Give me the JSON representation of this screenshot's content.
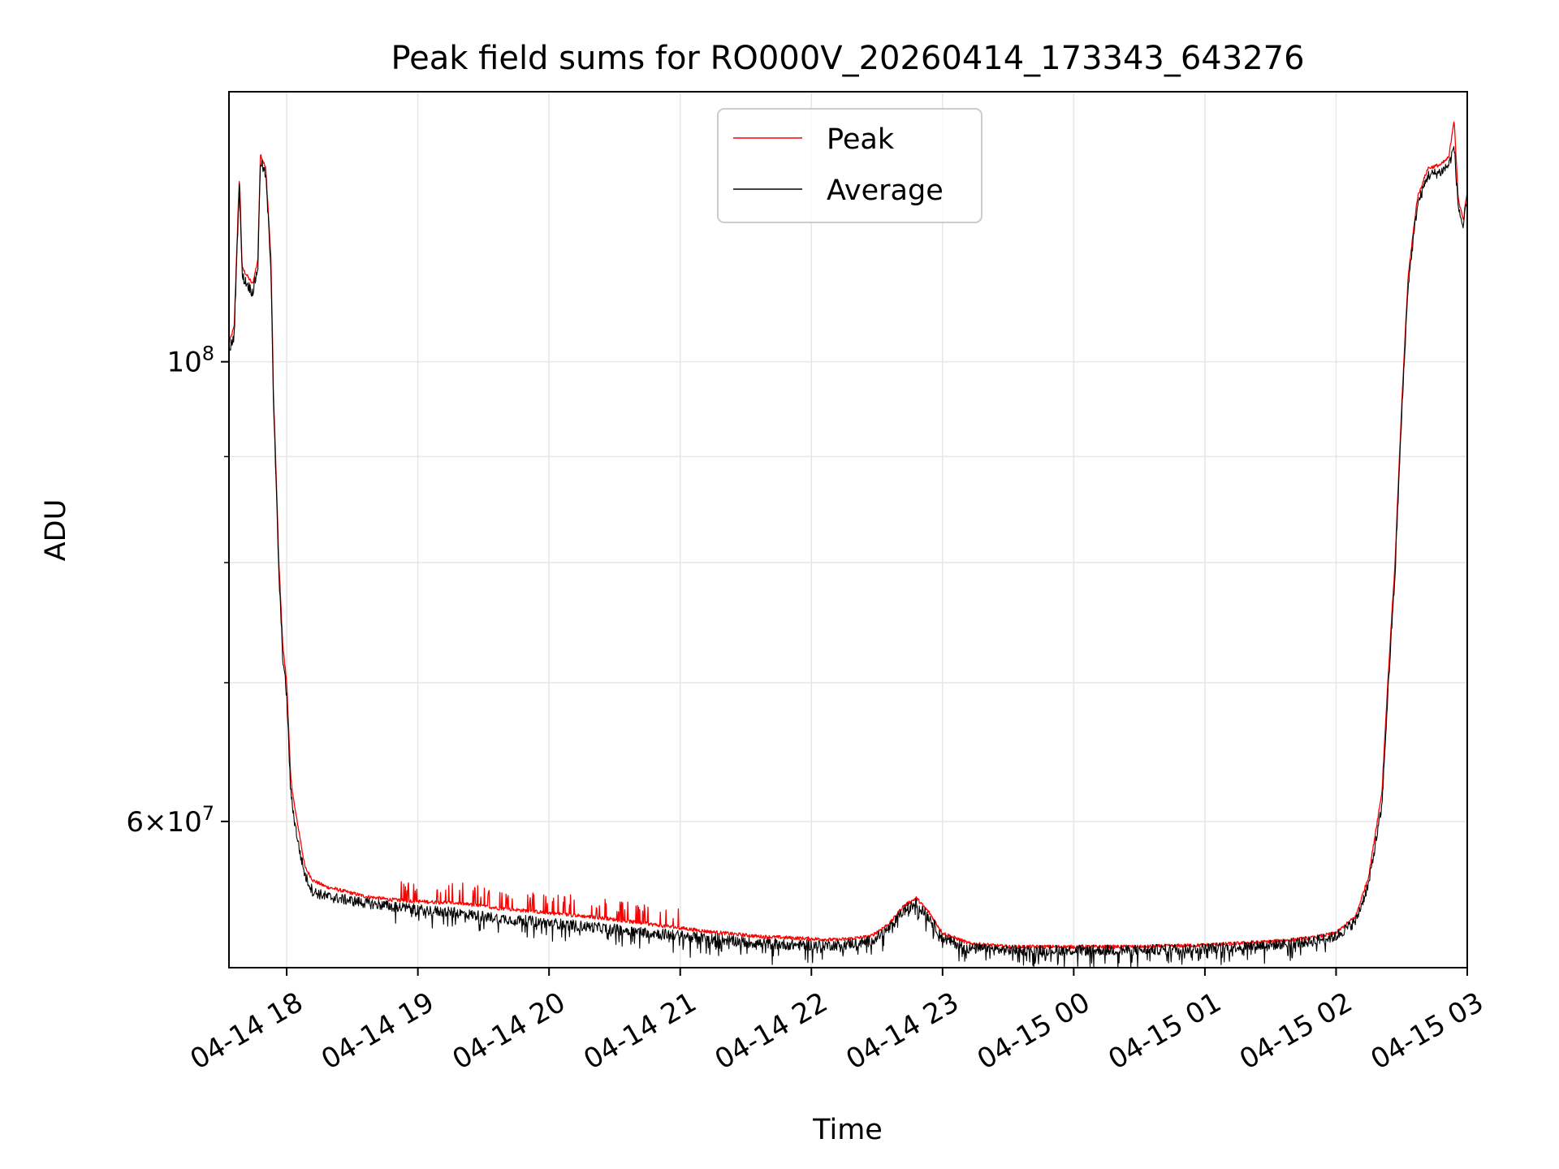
{
  "chart_data": {
    "type": "line",
    "title": "Peak field sums for RO000V_20260414_173343_643276",
    "xlabel": "Time",
    "ylabel": "ADU",
    "yscale": "log",
    "x_unit": "hours since 04-14 00:00",
    "xlim": [
      17.56,
      27.0
    ],
    "ylim": [
      51000000,
      135000000
    ],
    "x_ticks": [
      {
        "value": 18,
        "label": "04-14 18"
      },
      {
        "value": 19,
        "label": "04-14 19"
      },
      {
        "value": 20,
        "label": "04-14 20"
      },
      {
        "value": 21,
        "label": "04-14 21"
      },
      {
        "value": 22,
        "label": "04-14 22"
      },
      {
        "value": 23,
        "label": "04-14 23"
      },
      {
        "value": 24,
        "label": "04-15 00"
      },
      {
        "value": 25,
        "label": "04-15 01"
      },
      {
        "value": 26,
        "label": "04-15 02"
      },
      {
        "value": 27,
        "label": "04-15 03"
      }
    ],
    "y_major_ticks": [
      {
        "value": 60000000,
        "base": "6×10",
        "exp": "7"
      },
      {
        "value": 100000000,
        "base": "10",
        "exp": "8"
      }
    ],
    "y_minor_ticks": [
      70000000,
      80000000,
      90000000
    ],
    "grid": true,
    "legend_position": "top-center",
    "series": [
      {
        "name": "Peak",
        "color": "#ff0000",
        "x": [
          17.56,
          17.6,
          17.64,
          17.66,
          17.7,
          17.74,
          17.78,
          17.8,
          17.82,
          17.84,
          17.88,
          17.9,
          17.94,
          17.97,
          18.0,
          18.03,
          18.06,
          18.1,
          18.14,
          18.2,
          18.3,
          18.45,
          18.6,
          18.8,
          19.0,
          19.3,
          19.6,
          20.0,
          20.4,
          20.8,
          21.2,
          21.6,
          21.9,
          22.2,
          22.45,
          22.6,
          22.7,
          22.8,
          22.9,
          23.0,
          23.2,
          23.5,
          24.0,
          24.5,
          25.0,
          25.5,
          25.8,
          26.0,
          26.15,
          26.25,
          26.35,
          26.45,
          26.55,
          26.62,
          26.7,
          26.8,
          26.86,
          26.9,
          26.93,
          26.97,
          27.0
        ],
        "y": [
          102000000,
          104000000,
          123000000,
          111000000,
          110000000,
          109000000,
          112000000,
          126000000,
          125000000,
          124000000,
          112000000,
          96000000,
          80000000,
          73000000,
          70000000,
          63000000,
          61000000,
          59000000,
          57000000,
          56200000,
          55800000,
          55500000,
          55200000,
          55000000,
          54900000,
          54800000,
          54500000,
          54200000,
          53900000,
          53500000,
          53100000,
          52800000,
          52700000,
          52600000,
          52800000,
          53600000,
          54600000,
          55100000,
          54200000,
          53000000,
          52400000,
          52200000,
          52200000,
          52200000,
          52300000,
          52500000,
          52700000,
          53000000,
          54000000,
          56500000,
          62000000,
          80000000,
          110000000,
          120000000,
          124000000,
          124500000,
          125500000,
          131000000,
          120000000,
          117000000,
          121000000
        ]
      },
      {
        "name": "Average",
        "color": "#000000",
        "x": [
          17.56,
          17.6,
          17.64,
          17.66,
          17.7,
          17.74,
          17.78,
          17.8,
          17.82,
          17.84,
          17.88,
          17.9,
          17.94,
          17.97,
          18.0,
          18.03,
          18.06,
          18.1,
          18.14,
          18.2,
          18.3,
          18.45,
          18.6,
          18.8,
          19.0,
          19.3,
          19.6,
          20.0,
          20.4,
          20.8,
          21.2,
          21.6,
          21.9,
          22.2,
          22.45,
          22.6,
          22.7,
          22.8,
          22.9,
          23.0,
          23.2,
          23.5,
          24.0,
          24.5,
          25.0,
          25.5,
          25.8,
          26.0,
          26.15,
          26.25,
          26.35,
          26.45,
          26.55,
          26.62,
          26.7,
          26.8,
          26.86,
          26.9,
          26.93,
          26.97,
          27.0
        ],
        "y": [
          101000000,
          103000000,
          122000000,
          110000000,
          109000000,
          108000000,
          111000000,
          125000000,
          124000000,
          123000000,
          111000000,
          95000000,
          79000000,
          72000000,
          69000000,
          62000000,
          60000000,
          58000000,
          56500000,
          55500000,
          55200000,
          55000000,
          54800000,
          54600000,
          54400000,
          54200000,
          53900000,
          53600000,
          53300000,
          53000000,
          52700000,
          52400000,
          52300000,
          52300000,
          52500000,
          53300000,
          54300000,
          54800000,
          53900000,
          52700000,
          52100000,
          52000000,
          52000000,
          52000000,
          52100000,
          52300000,
          52500000,
          52800000,
          53700000,
          56000000,
          61000000,
          79000000,
          109000000,
          119000000,
          123000000,
          123500000,
          124500000,
          127000000,
          119000000,
          116000000,
          120000000
        ]
      }
    ]
  }
}
